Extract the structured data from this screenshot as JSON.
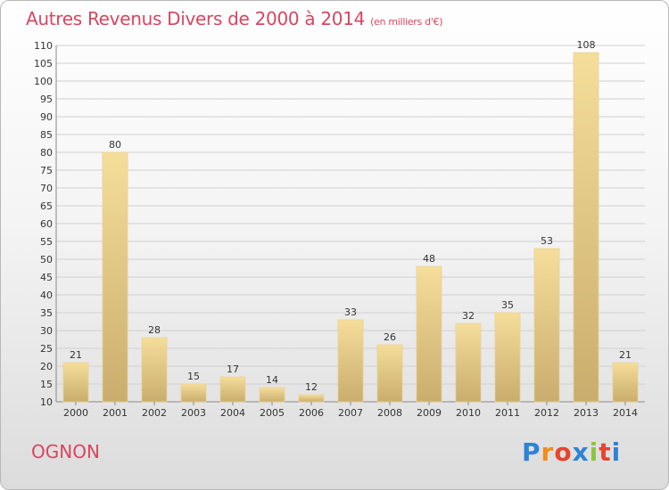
{
  "title": "Autres Revenus Divers de 2000 à 2014",
  "subtitle": "(en milliers d'€)",
  "commune": "OGNON",
  "logo": [
    "P",
    "r",
    "o",
    "x",
    "i",
    "t",
    "i"
  ],
  "colors": {
    "title": "#d9455f",
    "bar_light": "#f5dd9a",
    "bar_dark": "#c9ad6e",
    "logo": [
      "#2e83d6",
      "#f28c1c",
      "#e8432e",
      "#2e83d6",
      "#8cc63f",
      "#e8432e",
      "#2e83d6"
    ]
  },
  "chart_data": {
    "type": "bar",
    "categories": [
      "2000",
      "2001",
      "2002",
      "2003",
      "2004",
      "2005",
      "2006",
      "2007",
      "2008",
      "2009",
      "2010",
      "2011",
      "2012",
      "2013",
      "2014"
    ],
    "values": [
      21,
      80,
      28,
      15,
      17,
      14,
      12,
      33,
      26,
      48,
      32,
      35,
      53,
      108,
      21
    ],
    "ylim": [
      10,
      110
    ],
    "yticks": [
      10,
      15,
      20,
      25,
      30,
      35,
      40,
      45,
      50,
      55,
      60,
      65,
      70,
      75,
      80,
      85,
      90,
      95,
      100,
      105,
      110
    ],
    "grid": true
  }
}
